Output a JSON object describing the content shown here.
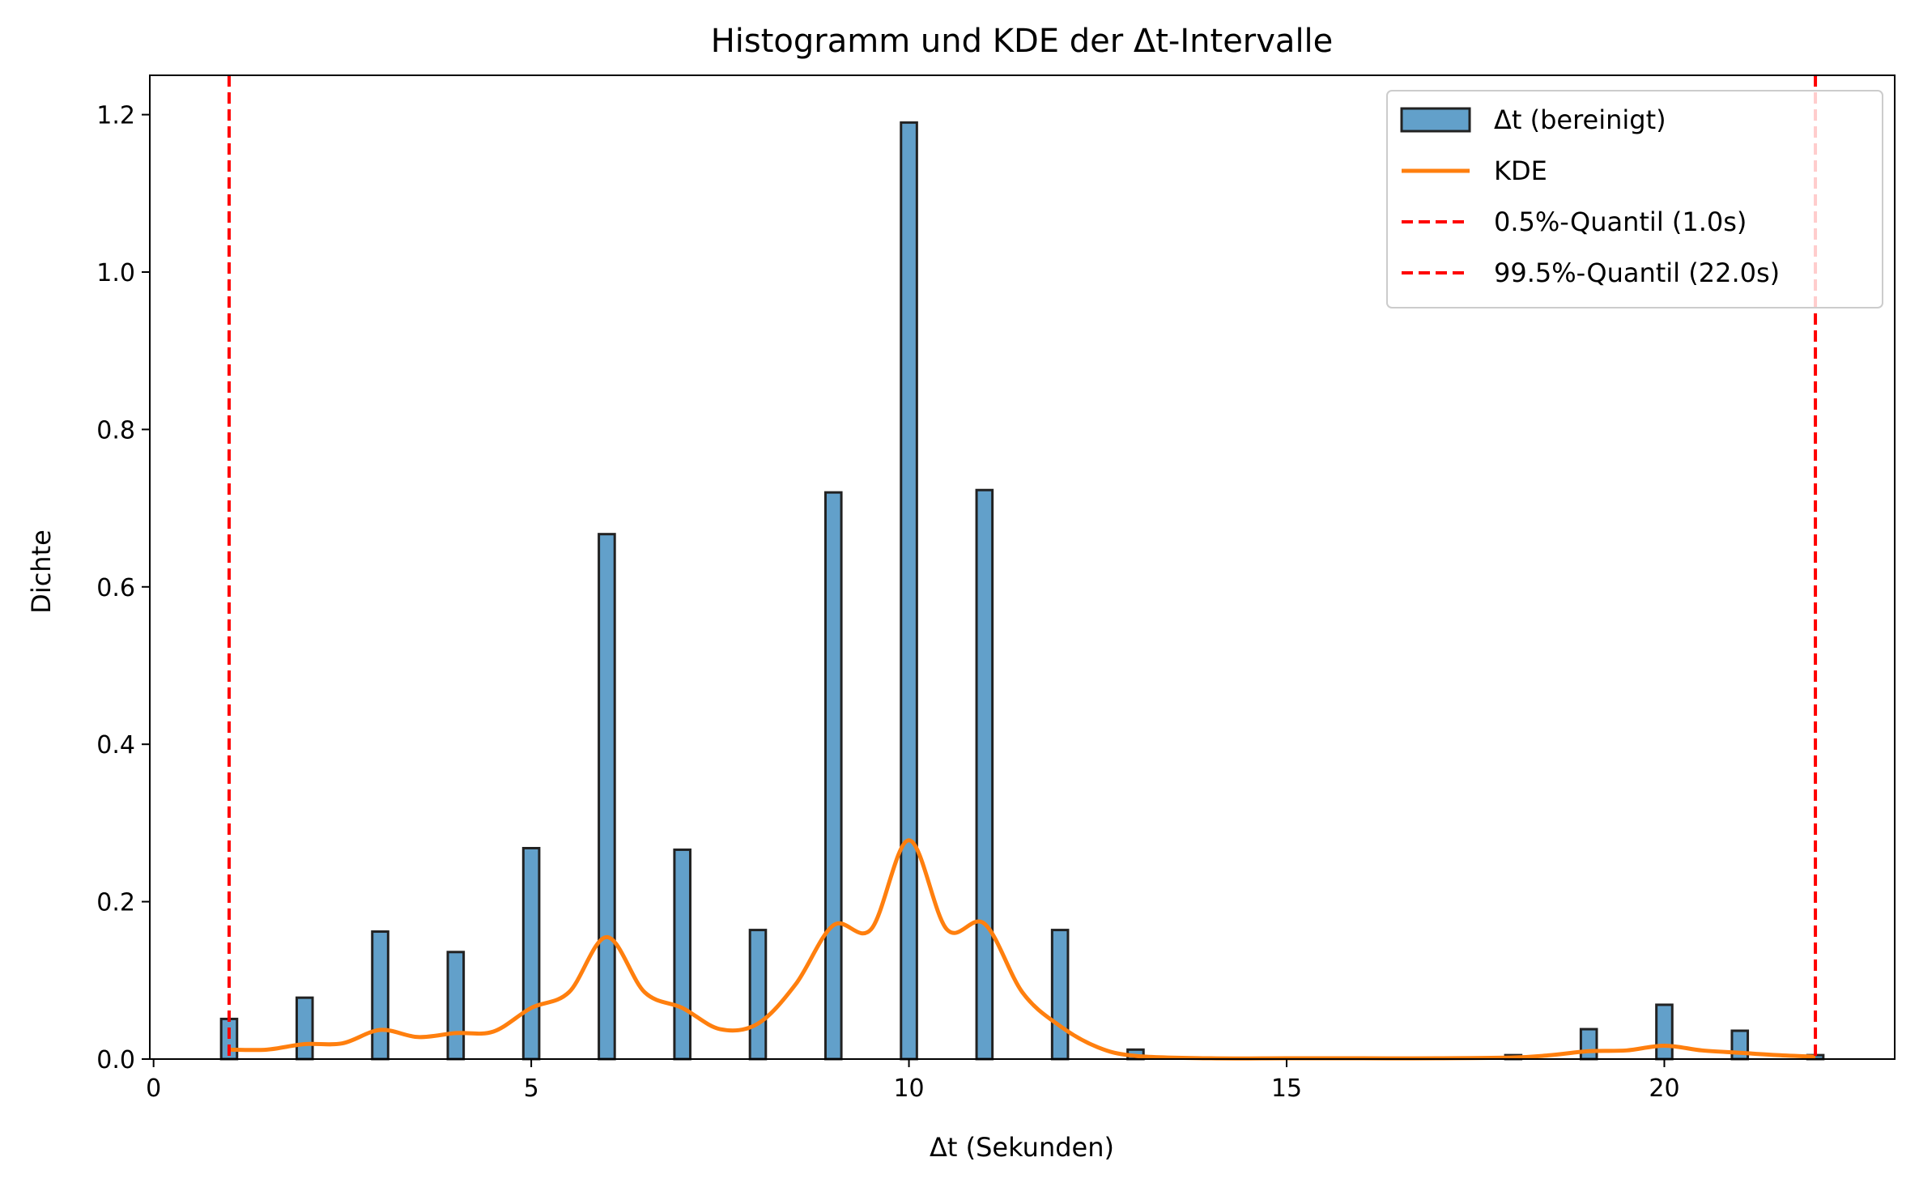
{
  "chart_data": {
    "type": "bar",
    "title": "Histogramm und KDE der Δt-Intervalle",
    "xlabel": "Δt (Sekunden)",
    "ylabel": "Dichte",
    "xlim": [
      -0.05,
      23.05
    ],
    "ylim": [
      0,
      1.25
    ],
    "xticks": [
      0,
      5,
      10,
      15,
      20
    ],
    "yticks": [
      0.0,
      0.2,
      0.4,
      0.6,
      0.8,
      1.0,
      1.2
    ],
    "grid": false,
    "legend_position": "top-right",
    "colors": {
      "bars": "#1f77b4",
      "bar_edge": "#222222",
      "kde": "#ff7f0e",
      "quantile": "#ff0000"
    },
    "histogram": {
      "name": "Δt (bereinigt)",
      "bin_width": 0.21,
      "bars": [
        {
          "x": 1,
          "value": 0.051
        },
        {
          "x": 2,
          "value": 0.078
        },
        {
          "x": 3,
          "value": 0.162
        },
        {
          "x": 4,
          "value": 0.136
        },
        {
          "x": 5,
          "value": 0.268
        },
        {
          "x": 6,
          "value": 0.667
        },
        {
          "x": 7,
          "value": 0.266
        },
        {
          "x": 8,
          "value": 0.164
        },
        {
          "x": 9,
          "value": 0.72
        },
        {
          "x": 10,
          "value": 1.19
        },
        {
          "x": 11,
          "value": 0.723
        },
        {
          "x": 12,
          "value": 0.164
        },
        {
          "x": 13,
          "value": 0.012
        },
        {
          "x": 18,
          "value": 0.005
        },
        {
          "x": 19,
          "value": 0.038
        },
        {
          "x": 20,
          "value": 0.069
        },
        {
          "x": 21,
          "value": 0.036
        },
        {
          "x": 22,
          "value": 0.005
        }
      ]
    },
    "kde": {
      "name": "KDE",
      "x": [
        1.0,
        1.5,
        2.0,
        2.5,
        3.0,
        3.5,
        4.0,
        4.5,
        5.0,
        5.5,
        6.0,
        6.5,
        7.0,
        7.5,
        8.0,
        8.5,
        9.0,
        9.5,
        10.0,
        10.5,
        11.0,
        11.5,
        12.0,
        12.5,
        13.0,
        14.0,
        15.0,
        16.0,
        17.0,
        18.0,
        18.5,
        19.0,
        19.5,
        20.0,
        20.5,
        21.0,
        21.5,
        22.0
      ],
      "y": [
        0.012,
        0.012,
        0.019,
        0.02,
        0.037,
        0.028,
        0.033,
        0.035,
        0.065,
        0.085,
        0.155,
        0.085,
        0.065,
        0.038,
        0.045,
        0.095,
        0.17,
        0.165,
        0.278,
        0.165,
        0.172,
        0.085,
        0.042,
        0.015,
        0.004,
        0.001,
        0.001,
        0.001,
        0.001,
        0.002,
        0.005,
        0.01,
        0.011,
        0.017,
        0.011,
        0.008,
        0.005,
        0.003
      ]
    },
    "quantiles": [
      {
        "name": "0.5%-Quantil (1.0s)",
        "x": 1.0
      },
      {
        "name": "99.5%-Quantil (22.0s)",
        "x": 22.0
      }
    ],
    "legend": [
      {
        "kind": "patch",
        "label": "Δt (bereinigt)"
      },
      {
        "kind": "line",
        "label": "KDE"
      },
      {
        "kind": "dashed",
        "label": "0.5%-Quantil (1.0s)"
      },
      {
        "kind": "dashed",
        "label": "99.5%-Quantil (22.0s)"
      }
    ]
  }
}
